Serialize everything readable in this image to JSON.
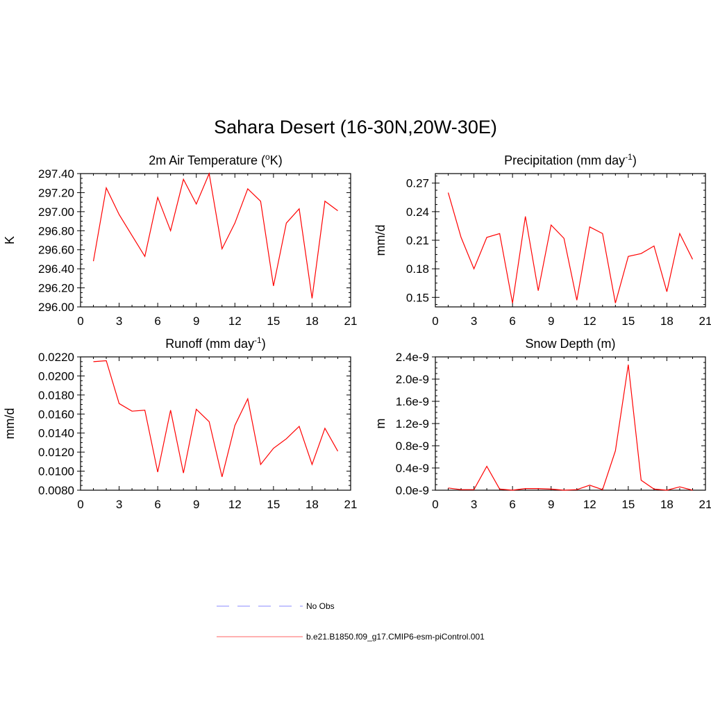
{
  "title": "Sahara Desert (16-30N,20W-30E)",
  "chart_data": [
    {
      "type": "line",
      "title": "2m Air Temperature (°K)",
      "title_main": "2m Air Temperature (",
      "title_sup": "o",
      "title_end": "K)",
      "xlabel": "",
      "ylabel": "K",
      "xlim": [
        0,
        21
      ],
      "ylim": [
        296.0,
        297.4
      ],
      "xticks": [
        0,
        3,
        6,
        9,
        12,
        15,
        18,
        21
      ],
      "xtick_labels": [
        "0",
        "3",
        "6",
        "9",
        "12",
        "15",
        "18",
        "21"
      ],
      "yticks": [
        296.0,
        296.2,
        296.4,
        296.6,
        296.8,
        297.0,
        297.2,
        297.4
      ],
      "ytick_labels": [
        "296.00",
        "296.20",
        "296.40",
        "296.60",
        "296.80",
        "297.00",
        "297.20",
        "297.40"
      ],
      "series": [
        {
          "color": "#ff0000",
          "x": [
            1,
            2,
            3,
            4,
            5,
            6,
            7,
            8,
            9,
            10,
            11,
            12,
            13,
            14,
            15,
            16,
            17,
            18,
            19,
            20
          ],
          "values": [
            296.48,
            297.25,
            296.97,
            296.75,
            296.53,
            297.15,
            296.8,
            297.34,
            297.08,
            297.4,
            296.61,
            296.88,
            297.24,
            297.11,
            296.22,
            296.88,
            297.03,
            296.09,
            297.11,
            297.01
          ]
        }
      ]
    },
    {
      "type": "line",
      "title": "Precipitation (mm day-1)",
      "title_main": "Precipitation (mm day",
      "title_sup": "-1",
      "title_end": ")",
      "xlabel": "",
      "ylabel": "mm/d",
      "xlim": [
        0,
        21
      ],
      "ylim": [
        0.14,
        0.28
      ],
      "xticks": [
        0,
        3,
        6,
        9,
        12,
        15,
        18,
        21
      ],
      "xtick_labels": [
        "0",
        "3",
        "6",
        "9",
        "12",
        "15",
        "18",
        "21"
      ],
      "yticks": [
        0.15,
        0.18,
        0.21,
        0.24,
        0.27
      ],
      "ytick_labels": [
        "0.15",
        "0.18",
        "0.21",
        "0.24",
        "0.27"
      ],
      "series": [
        {
          "color": "#ff0000",
          "x": [
            1,
            2,
            3,
            4,
            5,
            6,
            7,
            8,
            9,
            10,
            11,
            12,
            13,
            14,
            15,
            16,
            17,
            18,
            19,
            20
          ],
          "values": [
            0.26,
            0.213,
            0.18,
            0.213,
            0.217,
            0.144,
            0.235,
            0.157,
            0.226,
            0.212,
            0.147,
            0.224,
            0.217,
            0.144,
            0.193,
            0.196,
            0.204,
            0.156,
            0.217,
            0.19
          ]
        }
      ]
    },
    {
      "type": "line",
      "title": "Runoff (mm day-1)",
      "title_main": "Runoff (mm day",
      "title_sup": "-1",
      "title_end": ")",
      "xlabel": "",
      "ylabel": "mm/d",
      "xlim": [
        0,
        21
      ],
      "ylim": [
        0.008,
        0.022
      ],
      "xticks": [
        0,
        3,
        6,
        9,
        12,
        15,
        18,
        21
      ],
      "xtick_labels": [
        "0",
        "3",
        "6",
        "9",
        "12",
        "15",
        "18",
        "21"
      ],
      "yticks": [
        0.008,
        0.01,
        0.012,
        0.014,
        0.016,
        0.018,
        0.02,
        0.022
      ],
      "ytick_labels": [
        "0.0080",
        "0.0100",
        "0.0120",
        "0.0140",
        "0.0160",
        "0.0180",
        "0.0200",
        "0.0220"
      ],
      "series": [
        {
          "color": "#ff0000",
          "x": [
            1,
            2,
            3,
            4,
            5,
            6,
            7,
            8,
            9,
            10,
            11,
            12,
            13,
            14,
            15,
            16,
            17,
            18,
            19,
            20
          ],
          "values": [
            0.0215,
            0.0216,
            0.0171,
            0.0163,
            0.0164,
            0.0099,
            0.0164,
            0.0098,
            0.0165,
            0.0152,
            0.0094,
            0.0148,
            0.0176,
            0.0107,
            0.0124,
            0.0134,
            0.0147,
            0.0107,
            0.0145,
            0.0121
          ]
        }
      ]
    },
    {
      "type": "line",
      "title": "Snow Depth (m)",
      "title_main": "Snow Depth (m)",
      "title_sup": "",
      "title_end": "",
      "xlabel": "",
      "ylabel": "m",
      "xlim": [
        0,
        21
      ],
      "ylim": [
        0,
        2.4e-09
      ],
      "xticks": [
        0,
        3,
        6,
        9,
        12,
        15,
        18,
        21
      ],
      "xtick_labels": [
        "0",
        "3",
        "6",
        "9",
        "12",
        "15",
        "18",
        "21"
      ],
      "yticks": [
        0,
        4e-10,
        8e-10,
        1.2e-09,
        1.6e-09,
        2e-09,
        2.4e-09
      ],
      "ytick_labels": [
        "0.0e-9",
        "0.4e-9",
        "0.8e-9",
        "1.2e-9",
        "1.6e-9",
        "2.0e-9",
        "2.4e-9"
      ],
      "series": [
        {
          "color": "#ff0000",
          "x": [
            1,
            2,
            3,
            4,
            5,
            6,
            7,
            8,
            9,
            10,
            11,
            12,
            13,
            14,
            15,
            16,
            17,
            18,
            19,
            20
          ],
          "values": [
            4e-11,
            1e-11,
            1e-11,
            4.3e-10,
            2e-11,
            0.0,
            3e-11,
            3e-11,
            2e-11,
            0.0,
            1e-11,
            9e-11,
            1e-11,
            7.1e-10,
            2.26e-09,
            1.8e-10,
            2e-11,
            0.0,
            6e-11,
            0.0
          ]
        }
      ]
    }
  ],
  "legend": {
    "entries": [
      {
        "label": "No Obs",
        "color": "#a0a0ff",
        "style": "dashed"
      },
      {
        "label": "b.e21.B1850.f09_g17.CMIP6-esm-piControl.001",
        "color": "#ff8080",
        "style": "solid"
      }
    ]
  }
}
